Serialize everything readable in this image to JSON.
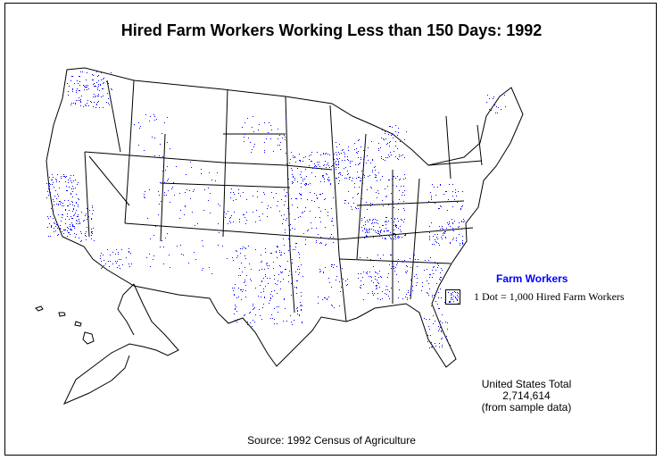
{
  "title": "Hired Farm Workers Working Less than 150 Days:  1992",
  "legend": {
    "title": "Farm Workers",
    "label": "1 Dot = 1,000 Hired Farm Workers"
  },
  "total": {
    "label": "United States Total",
    "value": "2,714,614",
    "note": "(from sample data)"
  },
  "source": "Source:  1992 Census of Agriculture",
  "colors": {
    "dots": "#0000ff",
    "boundaries": "#000000",
    "legend_title": "#0000ff"
  }
}
